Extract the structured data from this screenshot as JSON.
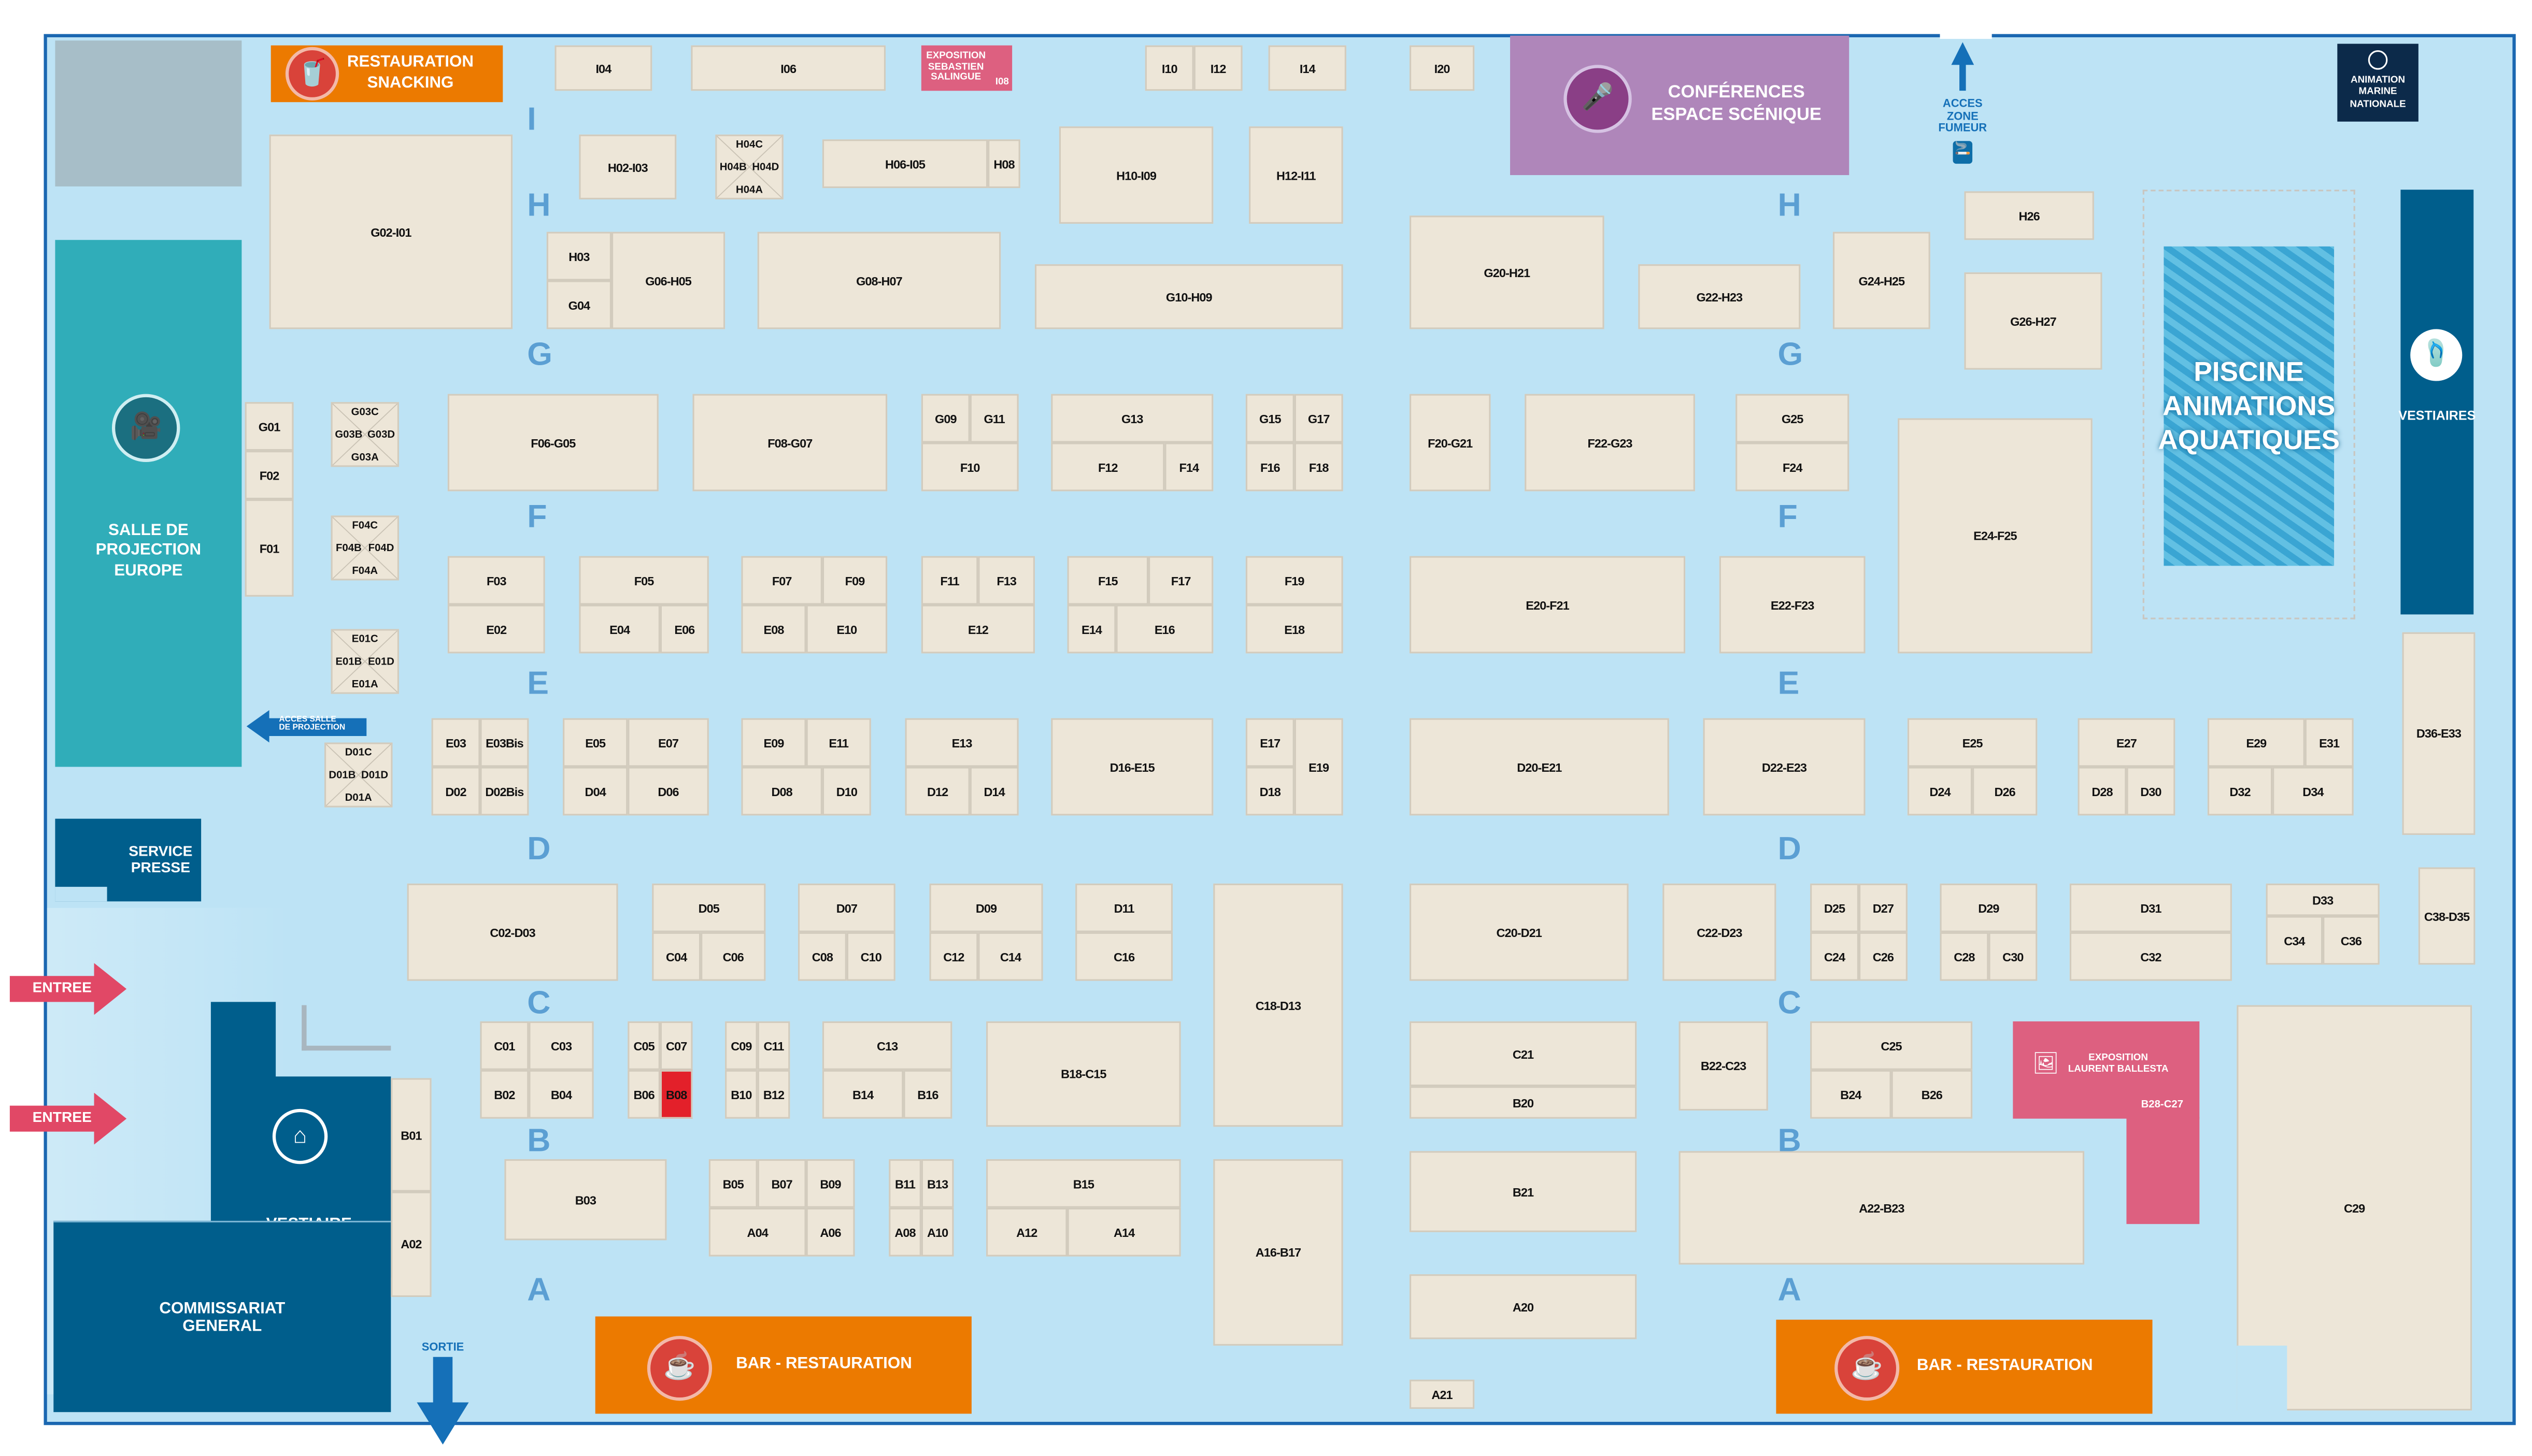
{
  "colors": {
    "hall_bg": "#bde3f5",
    "booth_fill": "#ede6d8",
    "orange": "#ec7a00",
    "teal": "#30adb9",
    "navy": "#005e8c",
    "purple": "#af86ba",
    "pink": "#dd6080",
    "highlight": "#e3202a"
  },
  "areas": {
    "restauration_snacking": "RESTAURATION\nSNACKING",
    "exposition_salingue": "EXPOSITION\nSEBASTIEN\nSALINGUE",
    "exposition_salingue_booth": "I08",
    "conferences": "CONFÉRENCES\nESPACE SCÉNIQUE",
    "acces_fumeur": "ACCES\nZONE\nFUMEUR",
    "animation_marine": "ANIMATION\nMARINE\nNATIONALE",
    "piscine": "PISCINE\nANIMATIONS\nAQUATIQUES",
    "vestiaires_right": "VESTIAIRES",
    "salle_projection": "SALLE DE\nPROJECTION\nEUROPE",
    "acces_salle_projection": "ACCES SALLE\nDE PROJECTION",
    "service_presse": "SERVICE\nPRESSE",
    "entree": "ENTREE",
    "vestiaire": "VESTIAIRE",
    "commissariat": "COMMISSARIAT\nGENERAL",
    "sortie": "SORTIE",
    "bar_restauration": "BAR - RESTAURATION",
    "exposition_ballesta": "EXPOSITION\nLAURENT BALLESTA",
    "exposition_ballesta_booth": "B28-C27"
  },
  "aisles": [
    "I",
    "H",
    "G",
    "F",
    "E",
    "D",
    "C",
    "B",
    "A"
  ],
  "booths": [
    "I04",
    "I06",
    "I10",
    "I12",
    "I14",
    "I20",
    "H02-I03",
    "H06-I05",
    "H08",
    "H10-I09",
    "H12-I11",
    "G02-I01",
    "H03",
    "G04",
    "G06-H05",
    "G08-H07",
    "G10-H09",
    "G20-H21",
    "G22-H23",
    "G24-H25",
    "H26",
    "G26-H27",
    "G01",
    "F02",
    "F01",
    "F06-G05",
    "F08-G07",
    "G09",
    "G11",
    "F10",
    "G13",
    "F12",
    "F14",
    "G15",
    "G17",
    "F16",
    "F18",
    "F20-G21",
    "F22-G23",
    "G25",
    "F24",
    "E24-F25",
    "F03",
    "E02",
    "F05",
    "E04",
    "E06",
    "F07",
    "F09",
    "E08",
    "E10",
    "F11",
    "F13",
    "E12",
    "F15",
    "F17",
    "E14",
    "E16",
    "F19",
    "E18",
    "E20-F21",
    "E22-F23",
    "E03",
    "E03Bis",
    "D02",
    "D02Bis",
    "E05",
    "E07",
    "D04",
    "D06",
    "E09",
    "E11",
    "D08",
    "D10",
    "E13",
    "D12",
    "D14",
    "D16-E15",
    "E17",
    "D18",
    "E19",
    "D20-E21",
    "D22-E23",
    "E25",
    "D24",
    "D26",
    "E27",
    "D28",
    "D30",
    "E29",
    "E31",
    "D32",
    "D34",
    "D36-E33",
    "C02-D03",
    "D05",
    "C04",
    "C06",
    "D07",
    "C08",
    "C10",
    "D09",
    "C12",
    "C14",
    "D11",
    "C16",
    "C18-D13",
    "C20-D21",
    "C22-D23",
    "D25",
    "D27",
    "C24",
    "C26",
    "D29",
    "C28",
    "C30",
    "D31",
    "C32",
    "D33",
    "C34",
    "C36",
    "C38-D35",
    "C01",
    "C03",
    "B02",
    "B04",
    "C05",
    "C07",
    "B06",
    "B08",
    "C09",
    "C11",
    "B10",
    "B12",
    "C13",
    "B14",
    "B16",
    "B18-C15",
    "C21",
    "B20",
    "B22-C23",
    "C25",
    "B24",
    "B26",
    "C29",
    "B01",
    "A02",
    "B03",
    "B05",
    "B07",
    "B09",
    "A04",
    "A06",
    "B11",
    "B13",
    "A08",
    "A10",
    "B15",
    "A12",
    "A14",
    "A16-B17",
    "B21",
    "A22-B23",
    "A20",
    "A21"
  ],
  "cross_booths": [
    [
      "H04C",
      "H04B",
      "H04D",
      "H04A"
    ],
    [
      "G03C",
      "G03B",
      "G03D",
      "G03A"
    ],
    [
      "F04C",
      "F04B",
      "F04D",
      "F04A"
    ],
    [
      "E01C",
      "E01B",
      "E01D",
      "E01A"
    ],
    [
      "D01C",
      "D01B",
      "D01D",
      "D01A"
    ]
  ],
  "highlighted_booth": "B08"
}
